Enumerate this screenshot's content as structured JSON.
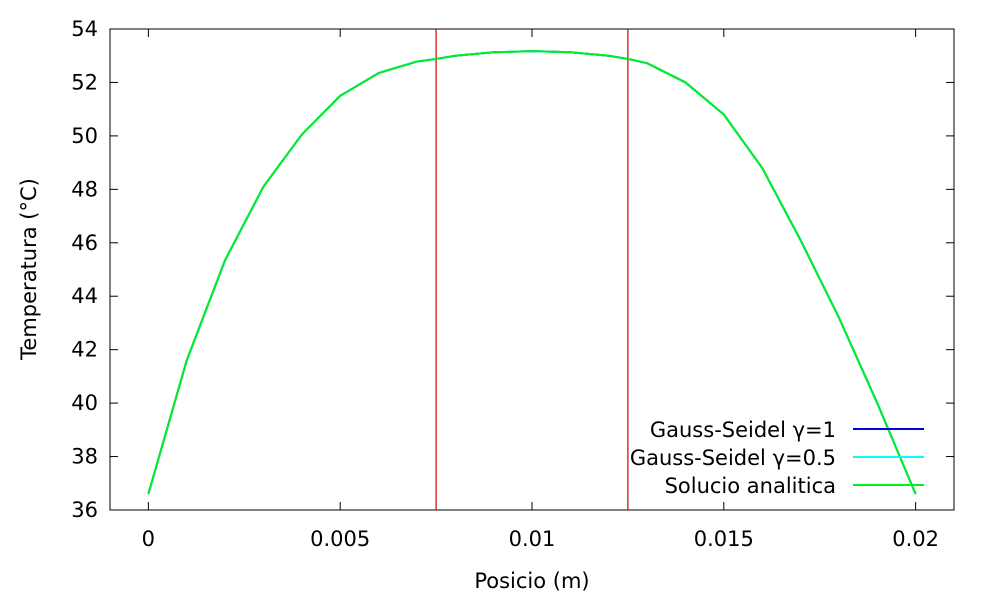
{
  "chart_data": {
    "type": "line",
    "title": "",
    "xlabel": "Posicio (m)",
    "ylabel": "Temperatura (°C)",
    "xlim": [
      -0.001,
      0.021
    ],
    "ylim": [
      36,
      54
    ],
    "x_ticks": [
      {
        "value": 0,
        "label": "0"
      },
      {
        "value": 0.005,
        "label": "0.005"
      },
      {
        "value": 0.01,
        "label": "0.01"
      },
      {
        "value": 0.015,
        "label": "0.015"
      },
      {
        "value": 0.02,
        "label": "0.02"
      }
    ],
    "y_ticks": [
      {
        "value": 36,
        "label": "36"
      },
      {
        "value": 38,
        "label": "38"
      },
      {
        "value": 40,
        "label": "40"
      },
      {
        "value": 42,
        "label": "42"
      },
      {
        "value": 44,
        "label": "44"
      },
      {
        "value": 46,
        "label": "46"
      },
      {
        "value": 48,
        "label": "48"
      },
      {
        "value": 50,
        "label": "50"
      },
      {
        "value": 52,
        "label": "52"
      },
      {
        "value": 54,
        "label": "54"
      }
    ],
    "x": [
      0,
      0.001,
      0.002,
      0.003,
      0.004,
      0.005,
      0.006,
      0.007,
      0.0075,
      0.008,
      0.009,
      0.01,
      0.011,
      0.012,
      0.0125,
      0.013,
      0.014,
      0.015,
      0.016,
      0.017,
      0.018,
      0.019,
      0.02
    ],
    "series": [
      {
        "name": "Gauss-Seidel γ=1",
        "color": "#0000dd",
        "values": [
          36.6,
          41.6,
          45.35,
          48.1,
          50.05,
          51.5,
          52.35,
          52.78,
          52.88,
          53.0,
          53.13,
          53.17,
          53.13,
          53.0,
          52.88,
          52.72,
          52.0,
          50.8,
          48.8,
          46.1,
          43.2,
          40.0,
          36.6
        ]
      },
      {
        "name": "Gauss-Seidel γ=0.5",
        "color": "#00ffff",
        "values": [
          36.6,
          41.6,
          45.35,
          48.1,
          50.05,
          51.5,
          52.35,
          52.78,
          52.88,
          53.0,
          53.13,
          53.17,
          53.13,
          53.0,
          52.88,
          52.72,
          52.0,
          50.8,
          48.8,
          46.1,
          43.2,
          40.0,
          36.6
        ]
      },
      {
        "name": "Solucio analitica",
        "color": "#00ee22",
        "values": [
          36.6,
          41.6,
          45.35,
          48.1,
          50.05,
          51.5,
          52.35,
          52.78,
          52.88,
          53.0,
          53.13,
          53.17,
          53.13,
          53.0,
          52.88,
          52.72,
          52.0,
          50.8,
          48.8,
          46.1,
          43.2,
          40.0,
          36.6
        ]
      }
    ],
    "vertical_lines": [
      {
        "x": 0.0075,
        "color": "#cc0000"
      },
      {
        "x": 0.0125,
        "color": "#cc0000"
      }
    ],
    "grid": false,
    "legend_position": "bottom-right"
  }
}
